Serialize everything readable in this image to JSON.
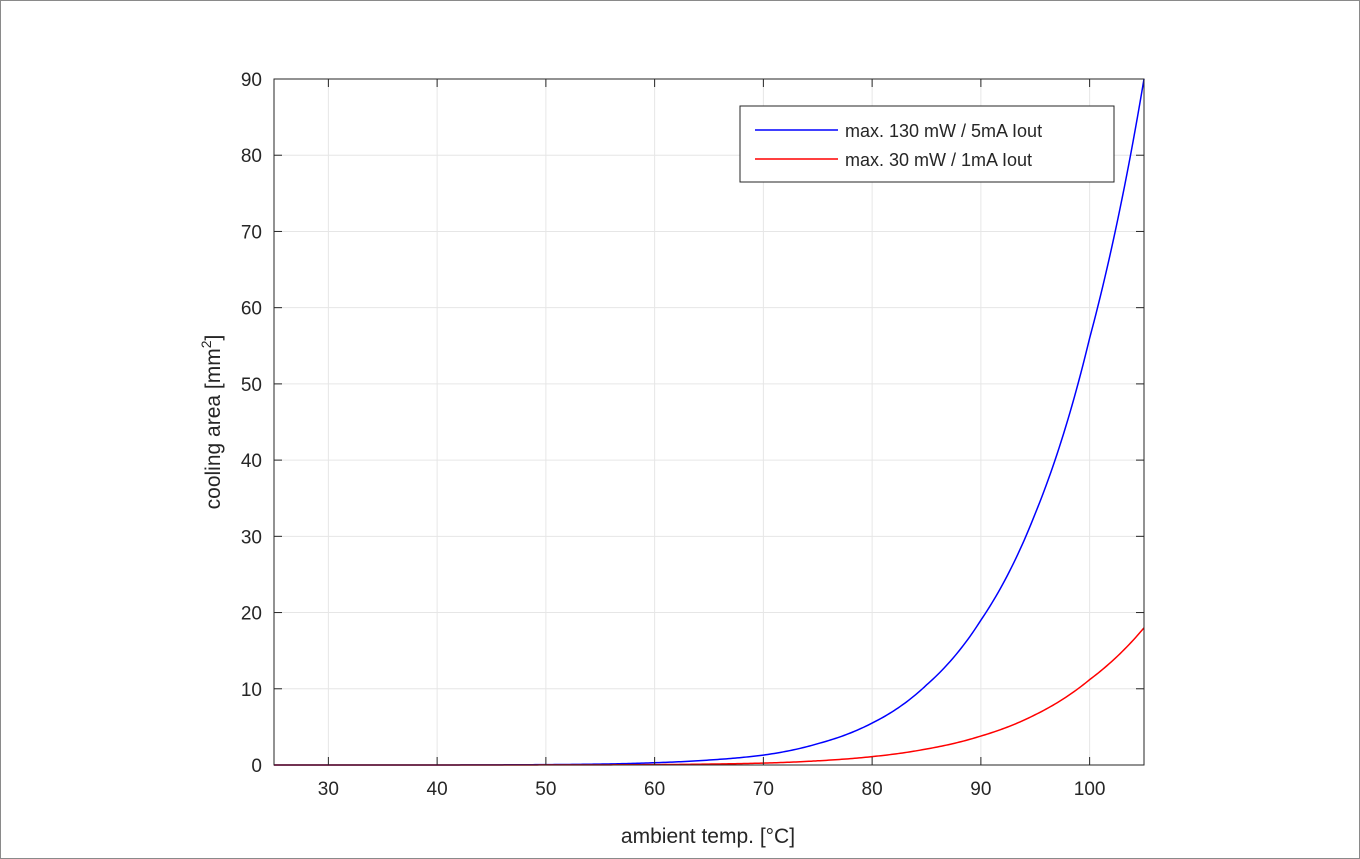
{
  "chart_data": {
    "type": "line",
    "title": "",
    "xlabel": "ambient temp. [°C]",
    "ylabel_main": "cooling area [mm",
    "ylabel_sup": "2",
    "ylabel_close": "]",
    "xlim": [
      25,
      105
    ],
    "ylim": [
      0,
      90
    ],
    "xticks": [
      30,
      40,
      50,
      60,
      70,
      80,
      90,
      100
    ],
    "yticks": [
      0,
      10,
      20,
      30,
      40,
      50,
      60,
      70,
      80,
      90
    ],
    "grid": true,
    "legend_position": "top-right",
    "series": [
      {
        "name": "max. 130 mW / 5mA Iout",
        "color": "#0000ff",
        "x": [
          25,
          30,
          35,
          40,
          45,
          50,
          55,
          60,
          65,
          70,
          75,
          80,
          85,
          90,
          95,
          100,
          105
        ],
        "y": [
          0,
          0,
          0,
          0,
          0.02,
          0.05,
          0.12,
          0.3,
          0.65,
          1.3,
          2.8,
          5.5,
          10.5,
          19.0,
          33.0,
          56.0,
          90.0
        ]
      },
      {
        "name": "max. 30 mW / 1mA Iout",
        "color": "#ff0000",
        "x": [
          25,
          30,
          35,
          40,
          45,
          50,
          55,
          60,
          65,
          70,
          75,
          80,
          85,
          90,
          95,
          100,
          105
        ],
        "y": [
          0,
          0,
          0,
          0,
          0,
          0.01,
          0.02,
          0.05,
          0.12,
          0.25,
          0.55,
          1.1,
          2.1,
          3.8,
          6.6,
          11.2,
          18.0
        ]
      }
    ]
  }
}
